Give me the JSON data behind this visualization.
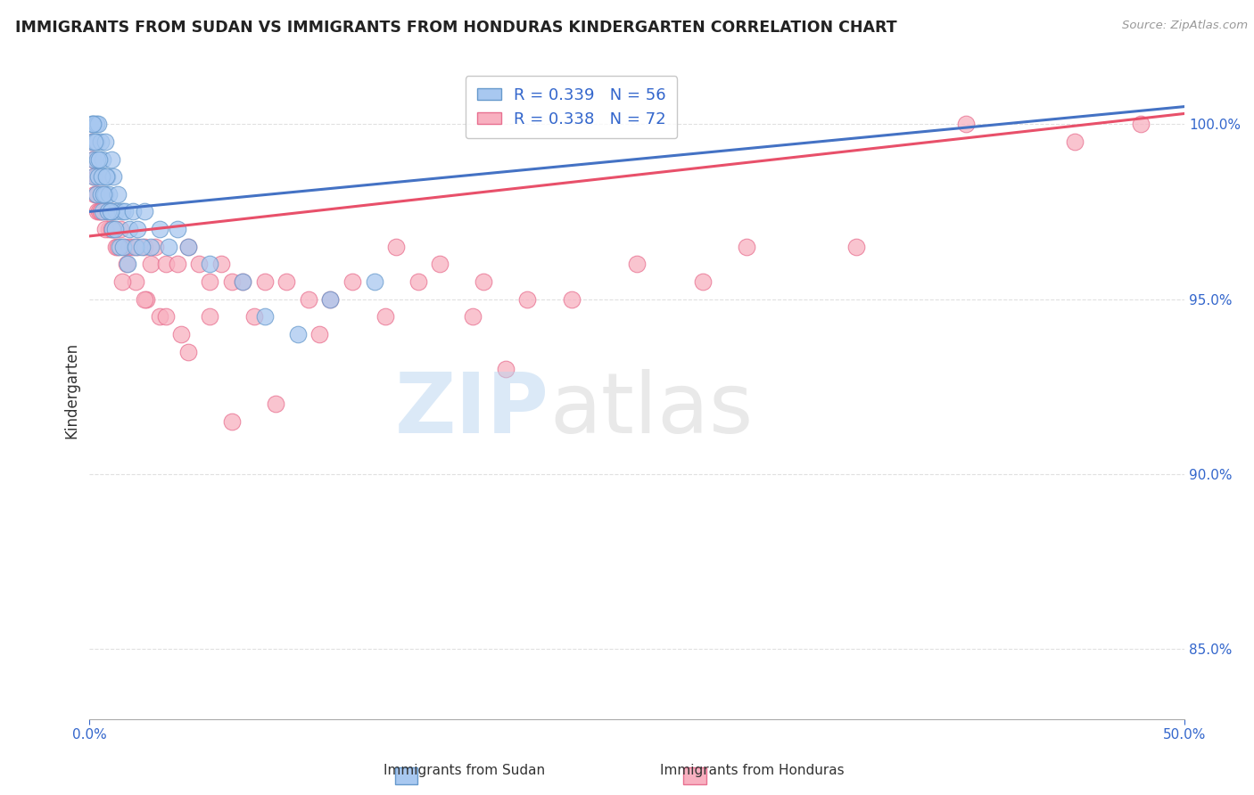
{
  "title": "IMMIGRANTS FROM SUDAN VS IMMIGRANTS FROM HONDURAS KINDERGARTEN CORRELATION CHART",
  "source": "Source: ZipAtlas.com",
  "ylabel": "Kindergarten",
  "xlim": [
    0.0,
    50.0
  ],
  "ylim": [
    83.0,
    101.8
  ],
  "yticks": [
    85.0,
    90.0,
    95.0,
    100.0
  ],
  "sudan_color": "#A8C8F0",
  "sudan_edge": "#6699CC",
  "honduras_color": "#F8B0C0",
  "honduras_edge": "#E87090",
  "trend_sudan_color": "#4472C4",
  "trend_honduras_color": "#E8506A",
  "R_sudan": 0.339,
  "N_sudan": 56,
  "R_honduras": 0.338,
  "N_honduras": 72,
  "legend_R_color": "#3366CC",
  "grid_color": "#DDDDDD",
  "background_color": "#FFFFFF",
  "title_color": "#222222",
  "axis_label_color": "#333333",
  "tick_color": "#3366CC",
  "watermark_color_zip": "#B8D4F0",
  "watermark_color_atlas": "#C8C8C8",
  "sudan_x": [
    0.1,
    0.1,
    0.2,
    0.2,
    0.2,
    0.3,
    0.3,
    0.3,
    0.4,
    0.4,
    0.5,
    0.5,
    0.6,
    0.6,
    0.7,
    0.7,
    0.8,
    0.9,
    1.0,
    1.0,
    1.1,
    1.2,
    1.3,
    1.5,
    1.6,
    1.8,
    2.0,
    2.2,
    2.5,
    2.8,
    3.2,
    3.6,
    4.0,
    4.5,
    5.5,
    7.0,
    8.0,
    9.5,
    11.0,
    13.0,
    0.15,
    0.25,
    0.35,
    0.45,
    0.55,
    0.65,
    0.75,
    0.85,
    0.95,
    1.05,
    1.15,
    1.35,
    1.55,
    1.75,
    2.1,
    2.4
  ],
  "sudan_y": [
    100.0,
    99.5,
    100.0,
    99.0,
    98.5,
    100.0,
    99.5,
    98.0,
    100.0,
    98.5,
    99.5,
    98.0,
    99.0,
    97.5,
    99.5,
    98.0,
    98.5,
    98.0,
    99.0,
    97.5,
    98.5,
    97.5,
    98.0,
    97.5,
    97.5,
    97.0,
    97.5,
    97.0,
    97.5,
    96.5,
    97.0,
    96.5,
    97.0,
    96.5,
    96.0,
    95.5,
    94.5,
    94.0,
    95.0,
    95.5,
    100.0,
    99.5,
    99.0,
    99.0,
    98.5,
    98.0,
    98.5,
    97.5,
    97.5,
    97.0,
    97.0,
    96.5,
    96.5,
    96.0,
    96.5,
    96.5
  ],
  "honduras_x": [
    0.1,
    0.15,
    0.2,
    0.25,
    0.3,
    0.35,
    0.4,
    0.45,
    0.5,
    0.6,
    0.7,
    0.8,
    0.9,
    1.0,
    1.1,
    1.2,
    1.4,
    1.6,
    1.8,
    2.0,
    2.2,
    2.5,
    2.8,
    3.0,
    3.5,
    4.0,
    4.5,
    5.0,
    5.5,
    6.0,
    6.5,
    7.0,
    8.0,
    9.0,
    10.0,
    11.0,
    12.0,
    14.0,
    16.0,
    18.0,
    20.0,
    25.0,
    30.0,
    35.0,
    45.0,
    0.3,
    0.5,
    0.7,
    1.0,
    1.3,
    1.7,
    2.1,
    2.6,
    3.2,
    4.2,
    5.5,
    7.5,
    10.5,
    13.5,
    17.5,
    22.0,
    28.0,
    1.5,
    2.5,
    3.5,
    4.5,
    6.5,
    8.5,
    15.0,
    19.0,
    40.0,
    48.0
  ],
  "honduras_y": [
    99.5,
    99.0,
    98.5,
    98.0,
    98.5,
    97.5,
    98.0,
    97.5,
    97.5,
    98.0,
    97.5,
    97.5,
    97.0,
    97.5,
    97.0,
    96.5,
    97.0,
    96.5,
    96.5,
    96.5,
    96.5,
    96.5,
    96.0,
    96.5,
    96.0,
    96.0,
    96.5,
    96.0,
    95.5,
    96.0,
    95.5,
    95.5,
    95.5,
    95.5,
    95.0,
    95.0,
    95.5,
    96.5,
    96.0,
    95.5,
    95.0,
    96.0,
    96.5,
    96.5,
    99.5,
    98.0,
    97.5,
    97.0,
    97.0,
    96.5,
    96.0,
    95.5,
    95.0,
    94.5,
    94.0,
    94.5,
    94.5,
    94.0,
    94.5,
    94.5,
    95.0,
    95.5,
    95.5,
    95.0,
    94.5,
    93.5,
    91.5,
    92.0,
    95.5,
    93.0,
    100.0,
    100.0
  ],
  "trend_sudan_x0": 0.0,
  "trend_sudan_y0": 97.5,
  "trend_sudan_x1": 50.0,
  "trend_sudan_y1": 100.5,
  "trend_honduras_x0": 0.0,
  "trend_honduras_y0": 96.8,
  "trend_honduras_x1": 50.0,
  "trend_honduras_y1": 100.3
}
